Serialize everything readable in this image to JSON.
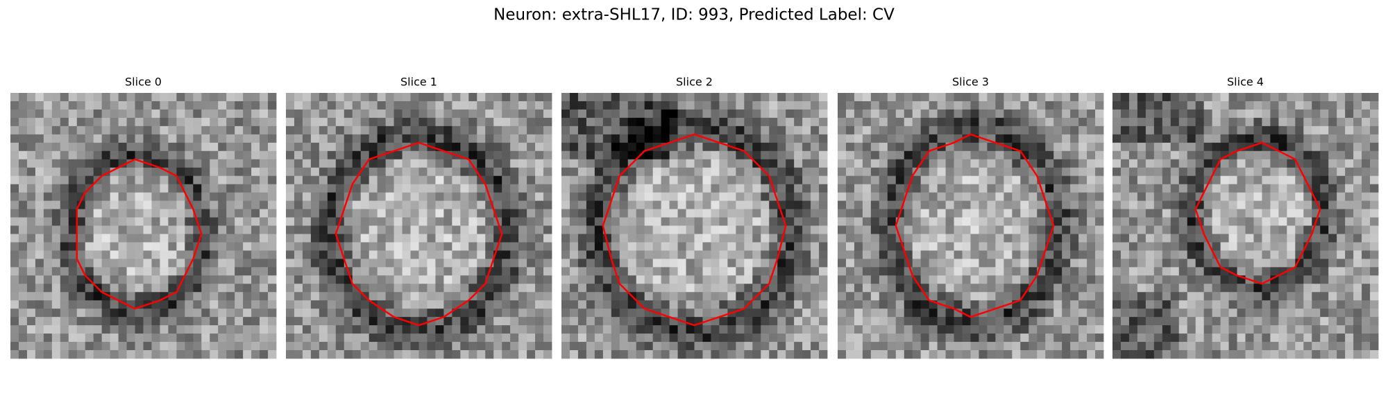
{
  "title": "Neuron: extra-SHL17, ID: 993, Predicted Label: CV",
  "panels": [
    {
      "title": "Slice 0"
    },
    {
      "title": "Slice 1"
    },
    {
      "title": "Slice 2"
    },
    {
      "title": "Slice 3"
    },
    {
      "title": "Slice 4"
    }
  ]
}
